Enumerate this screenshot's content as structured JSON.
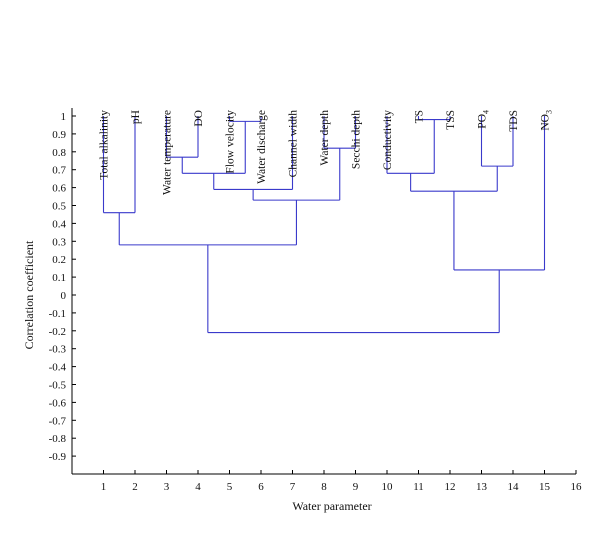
{
  "chart_data": {
    "type": "dendrogram",
    "xlabel": "Water parameter",
    "ylabel": "Correlation coefficient",
    "xlim": [
      0,
      16
    ],
    "ylim": [
      -1.0,
      1.0
    ],
    "x_ticks": [
      "1",
      "2",
      "3",
      "4",
      "5",
      "6",
      "7",
      "8",
      "9",
      "10",
      "11",
      "12",
      "13",
      "14",
      "15",
      "16"
    ],
    "y_ticks": [
      "1",
      "0.9",
      "0.8",
      "0.7",
      "0.6",
      "0.5",
      "0.4",
      "0.3",
      "0.2",
      "0.1",
      "0",
      "-0.1",
      "-0.2",
      "-0.3",
      "-0.4",
      "-0.5",
      "-0.6",
      "-0.7",
      "-0.8",
      "-0.9"
    ],
    "y_tick_values": [
      1,
      0.9,
      0.8,
      0.7,
      0.6,
      0.5,
      0.4,
      0.3,
      0.2,
      0.1,
      0,
      -0.1,
      -0.2,
      -0.3,
      -0.4,
      -0.5,
      -0.6,
      -0.7,
      -0.8,
      -0.9
    ],
    "leaves": [
      {
        "x": 1,
        "label": "Total alkalinity"
      },
      {
        "x": 2,
        "label": "pH"
      },
      {
        "x": 3,
        "label": "Water temperature"
      },
      {
        "x": 4,
        "label": "DO"
      },
      {
        "x": 5,
        "label": "Flow velocity"
      },
      {
        "x": 6,
        "label": "Water discharge"
      },
      {
        "x": 7,
        "label": "Channel width"
      },
      {
        "x": 8,
        "label": "Water depth"
      },
      {
        "x": 9,
        "label": "Secchi depth"
      },
      {
        "x": 10,
        "label": "Conductivity"
      },
      {
        "x": 11,
        "label": "TS"
      },
      {
        "x": 12,
        "label": "TSS"
      },
      {
        "x": 13,
        "label": "PO",
        "sub": "4"
      },
      {
        "x": 14,
        "label": "TDS"
      },
      {
        "x": 15,
        "label": "NO",
        "sub": "3"
      }
    ],
    "merges": [
      {
        "id": "m1",
        "left": "L1",
        "right": "L2",
        "height": 0.46
      },
      {
        "id": "m2",
        "left": "L3",
        "right": "L4",
        "height": 0.77
      },
      {
        "id": "m3",
        "left": "L5",
        "right": "L6",
        "height": 0.97
      },
      {
        "id": "m4",
        "left": "m2",
        "right": "m3",
        "height": 0.68
      },
      {
        "id": "m5",
        "left": "m4",
        "right": "L7",
        "height": 0.59
      },
      {
        "id": "m6",
        "left": "L8",
        "right": "L9",
        "height": 0.82
      },
      {
        "id": "m7",
        "left": "m5",
        "right": "m6",
        "height": 0.53
      },
      {
        "id": "m8",
        "left": "m1",
        "right": "m7",
        "height": 0.28
      },
      {
        "id": "m9",
        "left": "L11",
        "right": "L12",
        "height": 0.98
      },
      {
        "id": "m10",
        "left": "L10",
        "right": "m9",
        "height": 0.68
      },
      {
        "id": "m11",
        "left": "L13",
        "right": "L14",
        "height": 0.72
      },
      {
        "id": "m12",
        "left": "m10",
        "right": "m11",
        "height": 0.58
      },
      {
        "id": "m13",
        "left": "m12",
        "right": "L15",
        "height": 0.14
      },
      {
        "id": "m14",
        "left": "m8",
        "right": "m13",
        "height": -0.21
      }
    ],
    "leaf_top": 1.0,
    "colors": {
      "tree": "#3a3acb",
      "axis": "#000000",
      "text": "#111111"
    },
    "grid": false
  }
}
